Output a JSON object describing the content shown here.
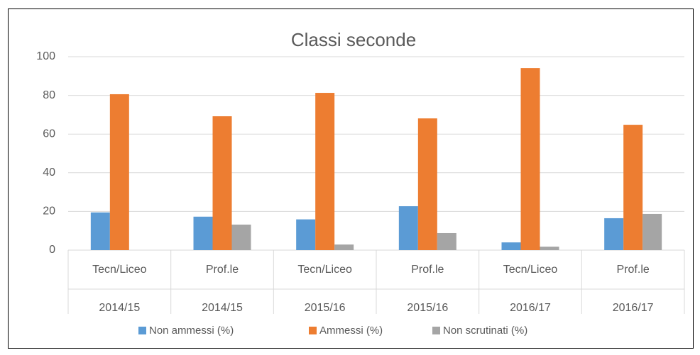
{
  "chart_data": {
    "type": "bar",
    "title": "Classi seconde",
    "categories": [
      [
        "Tecn/Liceo",
        "2014/15"
      ],
      [
        "Prof.le",
        "2014/15"
      ],
      [
        "Tecn/Liceo",
        "2015/16"
      ],
      [
        "Prof.le",
        "2015/16"
      ],
      [
        "Tecn/Liceo",
        "2016/17"
      ],
      [
        "Prof.le",
        "2016/17"
      ]
    ],
    "series": [
      {
        "name": "Non ammessi (%)",
        "color": "#5b9bd5",
        "values": [
          19.5,
          17.3,
          15.9,
          22.7,
          4,
          16.5
        ]
      },
      {
        "name": "Ammessi (%)",
        "color": "#ed7d31",
        "values": [
          80.6,
          69.2,
          81.3,
          68.1,
          94.1,
          64.8
        ]
      },
      {
        "name": "Non scrutinati (%)",
        "color": "#a5a5a5",
        "values": [
          0,
          13.2,
          2.9,
          8.8,
          1.8,
          18.7
        ]
      }
    ],
    "ylim": [
      0,
      100
    ],
    "yticks": [
      0,
      20,
      40,
      60,
      80,
      100
    ],
    "grid": true,
    "legend": "bottom"
  }
}
